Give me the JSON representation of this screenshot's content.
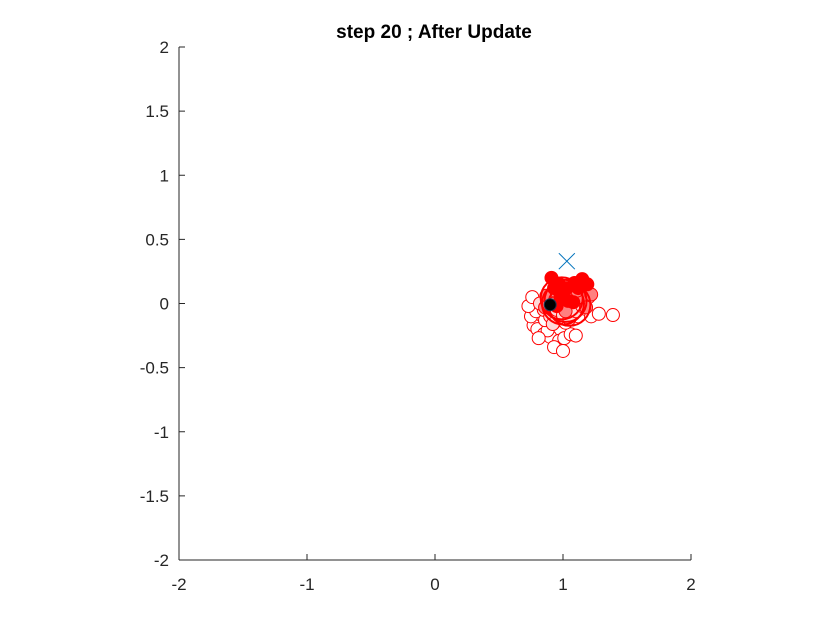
{
  "chart_data": {
    "type": "scatter",
    "title": "step 20 ; After Update",
    "xlabel": "",
    "ylabel": "",
    "xlim": [
      -2,
      2
    ],
    "ylim": [
      -2,
      2
    ],
    "xticks": [
      -2,
      -1,
      0,
      1,
      2
    ],
    "yticks": [
      -2,
      -1.5,
      -1,
      -0.5,
      0,
      0.5,
      1,
      1.5,
      2
    ],
    "xtick_labels": [
      "-2",
      "-1",
      "0",
      "1",
      "2"
    ],
    "ytick_labels": [
      "-2",
      "-1.5",
      "-1",
      "-0.5",
      "0",
      "0.5",
      "1",
      "1.5",
      "2"
    ],
    "grid": false,
    "colors": {
      "particle_edge": "#ff0000",
      "strong_fill": "#ff0000",
      "medium_fill": "#ff8080",
      "light_fill": "#ffd8d8",
      "estimate": "#000000",
      "target": "#0072bd"
    },
    "series": [
      {
        "marker": "circle-open",
        "points": [
          [
            0.77,
            -0.17
          ],
          [
            0.8,
            -0.2
          ],
          [
            0.85,
            -0.24
          ],
          [
            0.9,
            -0.26
          ],
          [
            0.97,
            -0.29
          ],
          [
            1.01,
            -0.27
          ],
          [
            1.06,
            -0.24
          ],
          [
            0.75,
            -0.1
          ],
          [
            0.79,
            -0.06
          ],
          [
            0.73,
            -0.02
          ],
          [
            0.76,
            0.05
          ],
          [
            1.12,
            -0.1
          ],
          [
            1.17,
            -0.04
          ],
          [
            1.22,
            -0.1
          ],
          [
            1.28,
            -0.08
          ],
          [
            1.39,
            -0.09
          ],
          [
            1.1,
            -0.25
          ],
          [
            0.93,
            -0.34
          ],
          [
            1.0,
            -0.37
          ],
          [
            0.88,
            -0.21
          ],
          [
            0.86,
            -0.13
          ],
          [
            0.93,
            -0.15
          ],
          [
            1.02,
            -0.15
          ],
          [
            0.97,
            -0.11
          ],
          [
            1.08,
            -0.04
          ],
          [
            1.14,
            0.02
          ],
          [
            0.81,
            -0.27
          ],
          [
            1.04,
            -0.05
          ]
        ]
      },
      {
        "marker": "circle-filled-light",
        "points": [
          [
            0.85,
            -0.05
          ],
          [
            0.9,
            -0.1
          ],
          [
            0.95,
            -0.05
          ],
          [
            1.0,
            -0.09
          ],
          [
            1.05,
            -0.12
          ],
          [
            1.1,
            -0.06
          ],
          [
            1.15,
            -0.02
          ],
          [
            0.82,
            0.0
          ],
          [
            0.88,
            0.03
          ],
          [
            1.2,
            0.05
          ],
          [
            0.92,
            -0.16
          ],
          [
            1.07,
            0.03
          ]
        ]
      },
      {
        "marker": "circle-filled-medium",
        "points": [
          [
            0.87,
            0.06
          ],
          [
            0.95,
            0.09
          ],
          [
            1.02,
            0.05
          ],
          [
            1.07,
            0.08
          ],
          [
            1.14,
            0.05
          ],
          [
            0.98,
            -0.02
          ],
          [
            0.86,
            -0.03
          ],
          [
            1.22,
            0.07
          ],
          [
            1.18,
            -0.03
          ],
          [
            0.93,
            0.0
          ],
          [
            1.02,
            -0.06
          ],
          [
            1.11,
            0.1
          ]
        ]
      },
      {
        "marker": "circle-filled-strong",
        "points": [
          [
            0.91,
            0.2
          ],
          [
            0.97,
            0.15
          ],
          [
            1.03,
            0.12
          ],
          [
            1.09,
            0.16
          ],
          [
            1.15,
            0.19
          ],
          [
            1.19,
            0.15
          ],
          [
            0.98,
            0.05
          ],
          [
            0.93,
            0.12
          ],
          [
            1.04,
            0.02
          ],
          [
            0.95,
            -0.02
          ],
          [
            1.08,
            0.01
          ],
          [
            1.12,
            0.12
          ]
        ]
      },
      {
        "marker": "ring",
        "points": [
          [
            1.02,
            0.02
          ],
          [
            1.0,
            0.0
          ],
          [
            1.05,
            -0.01
          ],
          [
            0.99,
            0.04
          ]
        ]
      },
      {
        "marker": "circle-filled-black",
        "points": [
          [
            0.9,
            -0.01
          ]
        ]
      },
      {
        "marker": "x",
        "points": [
          [
            1.03,
            0.33
          ]
        ]
      }
    ]
  }
}
